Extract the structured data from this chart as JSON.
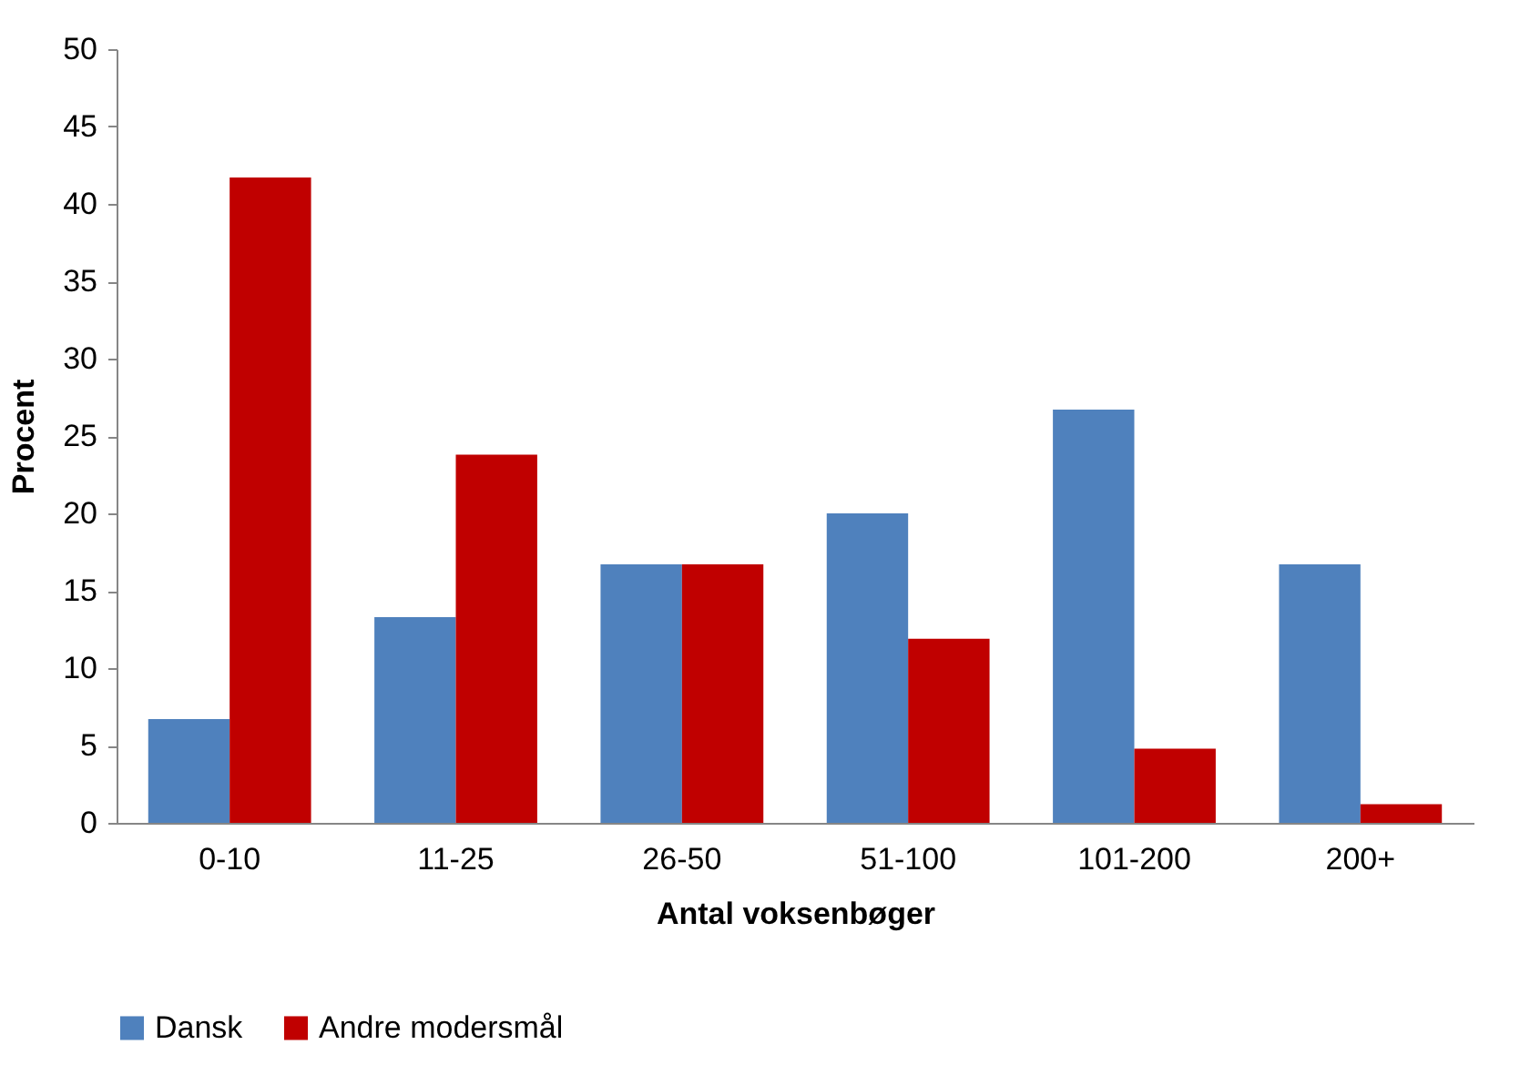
{
  "chart_data": {
    "type": "bar",
    "xlabel": "Antal voksenbøger",
    "ylabel": "Procent",
    "categories": [
      "0-10",
      "11-25",
      "26-50",
      "51-100",
      "101-200",
      "200+"
    ],
    "series": [
      {
        "name": "Dansk",
        "color": "#4f81bd",
        "values": [
          6.7,
          13.3,
          16.7,
          20.0,
          26.7,
          16.7
        ]
      },
      {
        "name": "Andre modersmål",
        "color": "#c00000",
        "values": [
          41.7,
          23.8,
          16.7,
          11.9,
          4.8,
          1.2
        ]
      }
    ],
    "ylim": [
      0,
      50
    ],
    "yticks": [
      0,
      5,
      10,
      15,
      20,
      25,
      30,
      35,
      40,
      45,
      50
    ],
    "grid": false,
    "legend": "bottom"
  }
}
